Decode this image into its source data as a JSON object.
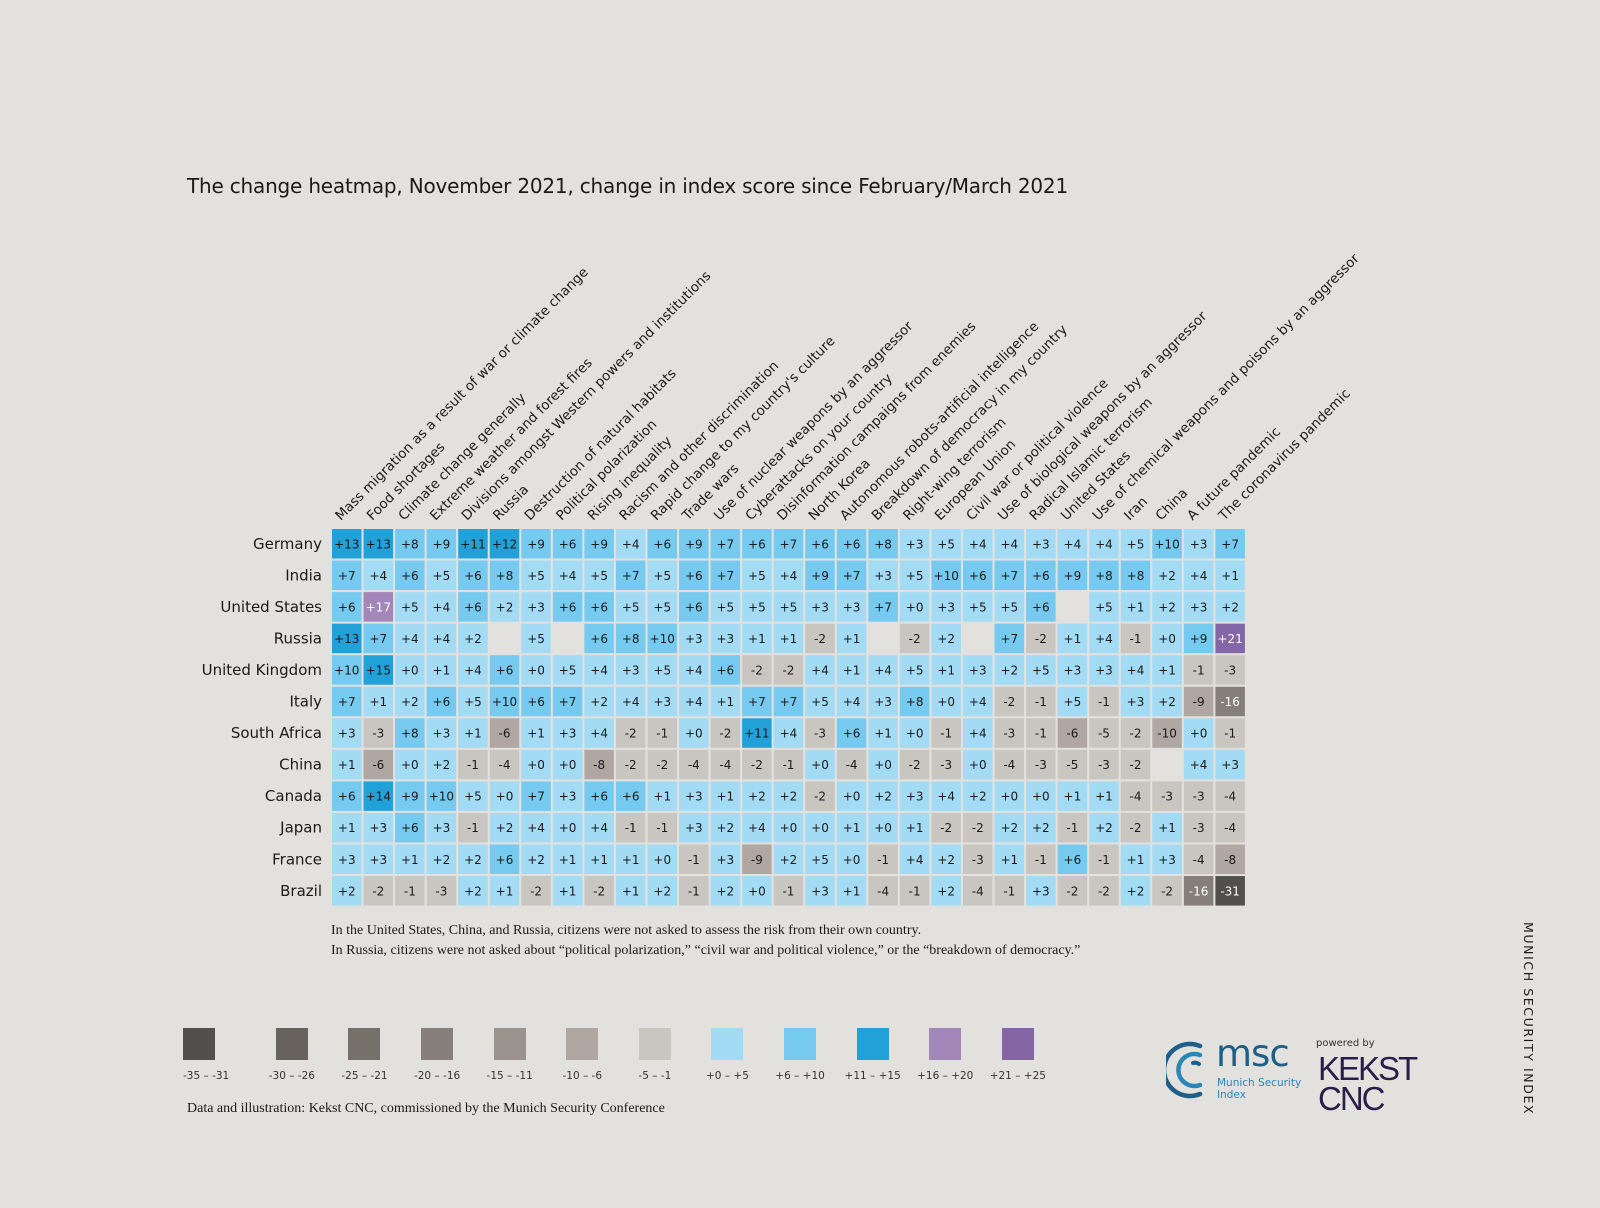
{
  "title": "The change heatmap, November 2021, change in index score since February/March 2021",
  "chart_data": {
    "type": "heatmap",
    "title": "The change heatmap, November 2021, change in index score since February/March 2021",
    "rows": [
      "Germany",
      "India",
      "United States",
      "Russia",
      "United Kingdom",
      "Italy",
      "South Africa",
      "China",
      "Canada",
      "Japan",
      "France",
      "Brazil"
    ],
    "columns": [
      "Mass migration as a result of war or climate change",
      "Food shortages",
      "Climate change generally",
      "Extreme weather and forest fires",
      "Divisions amongst Western powers and institutions",
      "Russia",
      "Destruction of natural habitats",
      "Political polarization",
      "Rising inequality",
      "Racism and other discrimination",
      "Rapid change to my country's culture",
      "Trade wars",
      "Use of nuclear weapons by an aggressor",
      "Cyberattacks on your country",
      "Disinformation campaigns from enemies",
      "North Korea",
      "Autonomous robots-artificial intelligence",
      "Breakdown of democracy in my country",
      "Right-wing terrorism",
      "European Union",
      "Civil war or political violence",
      "Use of biological weapons by an aggressor",
      "Radical Islamic terrorism",
      "United States",
      "Use of chemical weapons and poisons by an aggressor",
      "Iran",
      "China",
      "A future pandemic",
      "The coronavirus pandemic"
    ],
    "values": [
      [
        13,
        13,
        8,
        9,
        11,
        12,
        9,
        6,
        9,
        4,
        6,
        9,
        7,
        6,
        7,
        6,
        6,
        8,
        3,
        5,
        4,
        4,
        3,
        4,
        4,
        5,
        10,
        3,
        7
      ],
      [
        7,
        4,
        6,
        5,
        6,
        8,
        5,
        4,
        5,
        7,
        5,
        6,
        7,
        5,
        4,
        9,
        7,
        3,
        5,
        10,
        6,
        7,
        6,
        9,
        8,
        8,
        2,
        4,
        1
      ],
      [
        6,
        17,
        5,
        4,
        6,
        2,
        3,
        6,
        6,
        5,
        5,
        6,
        5,
        5,
        5,
        3,
        3,
        7,
        0,
        3,
        5,
        5,
        6,
        null,
        5,
        1,
        2,
        3,
        2
      ],
      [
        13,
        7,
        4,
        4,
        2,
        null,
        5,
        null,
        6,
        8,
        10,
        3,
        3,
        1,
        1,
        -2,
        1,
        null,
        -2,
        2,
        null,
        7,
        -2,
        1,
        4,
        -1,
        0,
        9,
        21
      ],
      [
        10,
        15,
        0,
        1,
        4,
        6,
        0,
        5,
        4,
        3,
        5,
        4,
        6,
        -2,
        -2,
        4,
        1,
        4,
        5,
        1,
        3,
        2,
        5,
        3,
        3,
        4,
        1,
        -1,
        -3
      ],
      [
        7,
        1,
        2,
        6,
        5,
        10,
        6,
        7,
        2,
        4,
        3,
        4,
        1,
        7,
        7,
        5,
        4,
        3,
        8,
        0,
        4,
        -2,
        -1,
        5,
        -1,
        3,
        2,
        -9,
        -16
      ],
      [
        3,
        -3,
        8,
        3,
        1,
        -6,
        1,
        3,
        4,
        -2,
        -1,
        0,
        -2,
        11,
        4,
        -3,
        6,
        1,
        0,
        -1,
        4,
        -3,
        -1,
        -6,
        -5,
        -2,
        -10,
        0,
        -1
      ],
      [
        1,
        -6,
        0,
        2,
        -1,
        -4,
        0,
        0,
        -8,
        -2,
        -2,
        -4,
        -4,
        -2,
        -1,
        0,
        -4,
        0,
        -2,
        -3,
        0,
        -4,
        -3,
        -5,
        -3,
        -2,
        null,
        4,
        3
      ],
      [
        6,
        14,
        9,
        10,
        5,
        0,
        7,
        3,
        6,
        6,
        1,
        3,
        1,
        2,
        2,
        -2,
        0,
        2,
        3,
        4,
        2,
        0,
        0,
        1,
        1,
        -4,
        -3,
        -3,
        -4
      ],
      [
        1,
        3,
        6,
        3,
        -1,
        2,
        4,
        0,
        4,
        -1,
        -1,
        3,
        2,
        4,
        0,
        0,
        1,
        0,
        1,
        -2,
        -2,
        2,
        2,
        -1,
        2,
        -2,
        1,
        -3,
        -4
      ],
      [
        3,
        3,
        1,
        2,
        2,
        6,
        2,
        1,
        1,
        1,
        0,
        -1,
        3,
        -9,
        2,
        5,
        0,
        -1,
        4,
        2,
        -3,
        1,
        -1,
        6,
        -1,
        1,
        3,
        -4,
        -8
      ],
      [
        2,
        -2,
        -1,
        -3,
        2,
        1,
        -2,
        1,
        -2,
        1,
        2,
        -1,
        2,
        0,
        -1,
        3,
        1,
        -4,
        -1,
        2,
        -4,
        -1,
        3,
        -2,
        -2,
        2,
        -2,
        -16,
        -31
      ]
    ],
    "legend": [
      {
        "label": "-35 – -31",
        "min": -35,
        "max": -31,
        "color": "#534f4c"
      },
      {
        "label": "-30 – -26",
        "min": -30,
        "max": -26,
        "color": "#67625e"
      },
      {
        "label": "-25 – -21",
        "min": -25,
        "max": -21,
        "color": "#76706b"
      },
      {
        "label": "-20 – -16",
        "min": -20,
        "max": -16,
        "color": "#867e7a"
      },
      {
        "label": "-15 – -11",
        "min": -15,
        "max": -11,
        "color": "#9b938d"
      },
      {
        "label": "-10 – -6",
        "min": -10,
        "max": -6,
        "color": "#b0a7a2"
      },
      {
        "label": "-5 – -1",
        "min": -5,
        "max": -1,
        "color": "#c9c6c1"
      },
      {
        "label": "+0 – +5",
        "min": 0,
        "max": 5,
        "color": "#a3dbf4"
      },
      {
        "label": "+6 – +10",
        "min": 6,
        "max": 10,
        "color": "#76c9ef"
      },
      {
        "label": "+11 – +15",
        "min": 11,
        "max": 15,
        "color": "#22a1d9"
      },
      {
        "label": "+16 – +20",
        "min": 16,
        "max": 20,
        "color": "#a487b9"
      },
      {
        "label": "+21 – +25",
        "min": 21,
        "max": 25,
        "color": "#8466a6"
      }
    ],
    "missing_color": "#e3e1dd",
    "legend_position": "bottom-left"
  },
  "notes": [
    "In the United States, China, and Russia, citizens were not asked to assess the risk from their own country.",
    "In Russia, citizens were not asked about “political polarization,” “civil war and political violence,” or the “breakdown of democracy.”"
  ],
  "credit": "Data and illustration: Kekst CNC, commissioned by the Munich Security Conference",
  "side_label": "MUNICH SECURITY INDEX",
  "logos": {
    "msc_word": "msc",
    "msc_sub_line1": "Munich Security",
    "msc_sub_line2": "Index",
    "powered_by": "powered by",
    "kekst_line1": "KEKST",
    "kekst_line2": "CNC"
  },
  "colors": {
    "background": "#e3e1dd",
    "msc_blue": "#1d5f86",
    "kekst_purple": "#2b1d4a"
  }
}
